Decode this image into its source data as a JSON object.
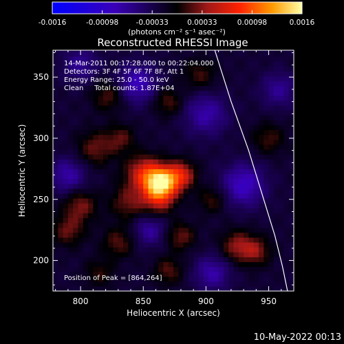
{
  "chart_data": {
    "type": "heatmap",
    "title": "Reconstructed RHESSI Image",
    "xlabel": "Heliocentric X (arcsec)",
    "ylabel": "Heliocentric Y (arcsec)",
    "xlim": [
      778,
      970
    ],
    "ylim": [
      175,
      372
    ],
    "xticks": [
      800,
      850,
      900,
      950
    ],
    "yticks": [
      200,
      250,
      300,
      350
    ],
    "colorbar": {
      "ticks": [
        "-0.0016",
        "-0.00098",
        "-0.00033",
        "0.00033",
        "0.00098",
        "0.0016"
      ],
      "range": [
        -0.0016,
        0.0016
      ],
      "units_label": "(photons cm⁻² s⁻¹ asec⁻²)"
    },
    "annotations": [
      "14-Mar-2011 00:17:28.000 to 00:22:04.000",
      "Detectors: 3F 4F 5F 6F 7F 8F, Att 1",
      "Energy Range: 25.0 - 50.0 keV",
      "Clean     Total counts: 1.87E+04",
      "Position of Peak = [864,264]"
    ],
    "peak": {
      "x": 864,
      "y": 264
    },
    "sources": [
      {
        "x": 864,
        "y": 264,
        "amp": 0.0016,
        "sigma": 9
      },
      {
        "x": 880,
        "y": 270,
        "amp": 0.0008,
        "sigma": 8
      },
      {
        "x": 850,
        "y": 272,
        "amp": 0.00075,
        "sigma": 10
      },
      {
        "x": 862,
        "y": 250,
        "amp": 0.0006,
        "sigma": 9
      },
      {
        "x": 838,
        "y": 248,
        "amp": 0.00045,
        "sigma": 10
      },
      {
        "x": 812,
        "y": 292,
        "amp": 0.00045,
        "sigma": 10
      },
      {
        "x": 832,
        "y": 300,
        "amp": 0.0004,
        "sigma": 8
      },
      {
        "x": 822,
        "y": 335,
        "amp": 0.0004,
        "sigma": 9
      },
      {
        "x": 870,
        "y": 330,
        "amp": 0.0004,
        "sigma": 8
      },
      {
        "x": 895,
        "y": 352,
        "amp": 0.00035,
        "sigma": 9
      },
      {
        "x": 800,
        "y": 245,
        "amp": 0.0005,
        "sigma": 9
      },
      {
        "x": 790,
        "y": 225,
        "amp": 0.00045,
        "sigma": 9
      },
      {
        "x": 830,
        "y": 215,
        "amp": 0.0004,
        "sigma": 9
      },
      {
        "x": 880,
        "y": 220,
        "amp": 0.00045,
        "sigma": 8
      },
      {
        "x": 870,
        "y": 192,
        "amp": 0.0004,
        "sigma": 8
      },
      {
        "x": 925,
        "y": 212,
        "amp": 0.00055,
        "sigma": 9
      },
      {
        "x": 940,
        "y": 208,
        "amp": 0.0005,
        "sigma": 8
      },
      {
        "x": 905,
        "y": 250,
        "amp": 0.00035,
        "sigma": 8
      },
      {
        "x": 950,
        "y": 300,
        "amp": 0.00035,
        "sigma": 9
      },
      {
        "x": 815,
        "y": 190,
        "amp": 0.0003,
        "sigma": 8
      },
      {
        "x": 845,
        "y": 345,
        "amp": -0.0006,
        "sigma": 11
      },
      {
        "x": 900,
        "y": 320,
        "amp": -0.0005,
        "sigma": 12
      },
      {
        "x": 930,
        "y": 262,
        "amp": -0.00065,
        "sigma": 12
      },
      {
        "x": 790,
        "y": 270,
        "amp": -0.0005,
        "sigma": 10
      },
      {
        "x": 855,
        "y": 225,
        "amp": -0.00045,
        "sigma": 9
      },
      {
        "x": 905,
        "y": 190,
        "amp": -0.0005,
        "sigma": 10
      },
      {
        "x": 800,
        "y": 360,
        "amp": -0.0004,
        "sigma": 10
      },
      {
        "x": 958,
        "y": 340,
        "amp": -0.0004,
        "sigma": 10
      }
    ],
    "limb": [
      [
        907,
        372
      ],
      [
        920,
        330
      ],
      [
        934,
        290
      ],
      [
        946,
        250
      ],
      [
        955,
        220
      ],
      [
        961,
        195
      ],
      [
        965,
        175
      ]
    ]
  },
  "footer": {
    "date": "10-May-2022 00:13"
  }
}
